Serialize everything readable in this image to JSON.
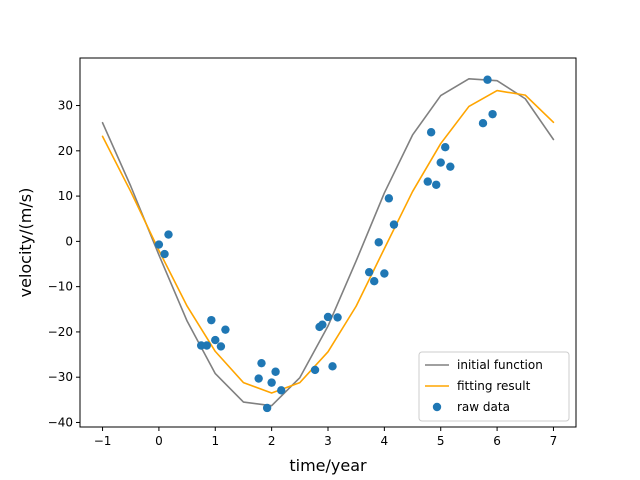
{
  "chart_data": {
    "type": "scatter",
    "xlabel": "time/year",
    "ylabel": "velocity/(m/s)",
    "xlim": [
      -1.4,
      7.4
    ],
    "ylim": [
      -41,
      40.5
    ],
    "xticks": [
      -1,
      0,
      1,
      2,
      3,
      4,
      5,
      6,
      7
    ],
    "yticks": [
      -40,
      -30,
      -20,
      -10,
      0,
      10,
      20,
      30
    ],
    "grid": false,
    "legend_position": "lower-right",
    "series": [
      {
        "name": "initial function",
        "kind": "line",
        "color": "#808080",
        "x": [
          -1.0,
          -0.5,
          0.0,
          0.5,
          1.0,
          1.5,
          2.0,
          2.5,
          3.0,
          3.5,
          4.0,
          4.5,
          5.0,
          5.5,
          6.0,
          6.5,
          7.0
        ],
        "y": [
          26.2,
          12.2,
          -3.0,
          -17.6,
          -29.2,
          -35.5,
          -36.3,
          -30.1,
          -18.7,
          -4.3,
          10.7,
          23.5,
          32.2,
          35.9,
          35.5,
          31.5,
          22.5
        ]
      },
      {
        "name": "fitting result",
        "kind": "line",
        "color": "#ffa500",
        "x": [
          -1.0,
          -0.5,
          0.0,
          0.5,
          1.0,
          1.5,
          2.0,
          2.5,
          3.0,
          3.5,
          4.0,
          4.5,
          5.0,
          5.5,
          6.0,
          6.5,
          7.0
        ],
        "y": [
          23.2,
          11.0,
          -2.0,
          -14.3,
          -24.3,
          -31.2,
          -33.5,
          -31.2,
          -24.4,
          -14.3,
          -1.6,
          11.0,
          21.6,
          29.8,
          33.3,
          32.3,
          26.3
        ]
      },
      {
        "name": "raw data",
        "kind": "scatter",
        "color": "#1f77b4",
        "x": [
          0.0,
          0.1,
          0.17,
          0.75,
          0.85,
          0.93,
          1.0,
          1.1,
          1.18,
          1.77,
          1.82,
          1.92,
          2.0,
          2.07,
          2.17,
          2.77,
          2.85,
          2.9,
          3.0,
          3.08,
          3.17,
          3.73,
          3.82,
          3.9,
          4.0,
          4.08,
          4.17,
          4.77,
          4.83,
          4.92,
          5.0,
          5.08,
          5.17,
          5.75,
          5.83,
          5.92
        ],
        "y": [
          -0.7,
          -2.8,
          1.5,
          -23.0,
          -23.0,
          -17.4,
          -21.8,
          -23.2,
          -19.5,
          -30.3,
          -26.9,
          -36.8,
          -31.2,
          -28.8,
          -32.9,
          -28.4,
          -18.9,
          -18.4,
          -16.7,
          -27.6,
          -16.8,
          -6.8,
          -8.8,
          -0.2,
          -7.1,
          9.5,
          3.7,
          13.2,
          24.1,
          12.5,
          17.4,
          20.8,
          16.5,
          26.1,
          35.7,
          28.1
        ]
      }
    ]
  }
}
